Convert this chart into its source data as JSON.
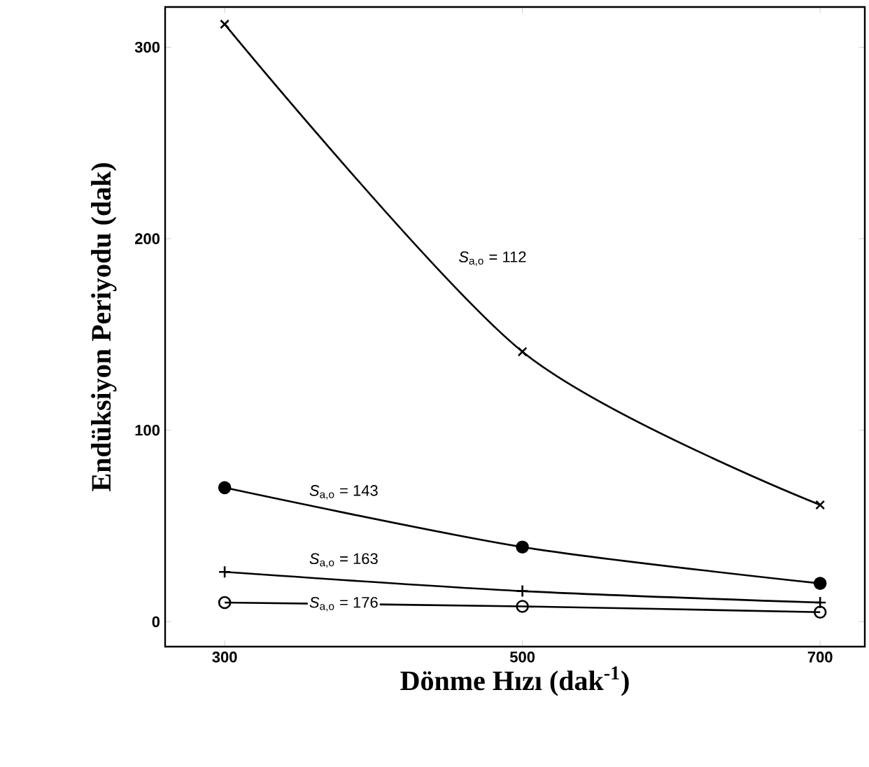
{
  "chart_data": {
    "type": "line",
    "xlabel": "Dönme Hızı (dak$^{-1}$)",
    "ylabel": "Endüksiyon Periyodu (dak)",
    "x": [
      300,
      500,
      700
    ],
    "xlim": [
      260,
      730
    ],
    "xticks": [
      300,
      500,
      700
    ],
    "ylim": [
      -13,
      321
    ],
    "yticks": [
      0,
      100,
      200,
      300
    ],
    "grid": false,
    "series": [
      {
        "name": "*S*$_{a,o}$ = 112",
        "color": "#000000",
        "marker": "cross",
        "values": [
          312,
          141,
          61
        ]
      },
      {
        "name": "*S*$_{a,o}$ = 143",
        "color": "#000000",
        "marker": "circle",
        "values": [
          70,
          39,
          20
        ]
      },
      {
        "name": "*S*$_{a,o}$ = 163",
        "color": "#000000",
        "marker": "plus",
        "values": [
          26,
          16,
          10
        ]
      },
      {
        "name": "*S*$_{a,o}$ = 176",
        "color": "#000000",
        "marker": "open circle",
        "values": [
          10,
          8,
          5
        ]
      }
    ]
  }
}
